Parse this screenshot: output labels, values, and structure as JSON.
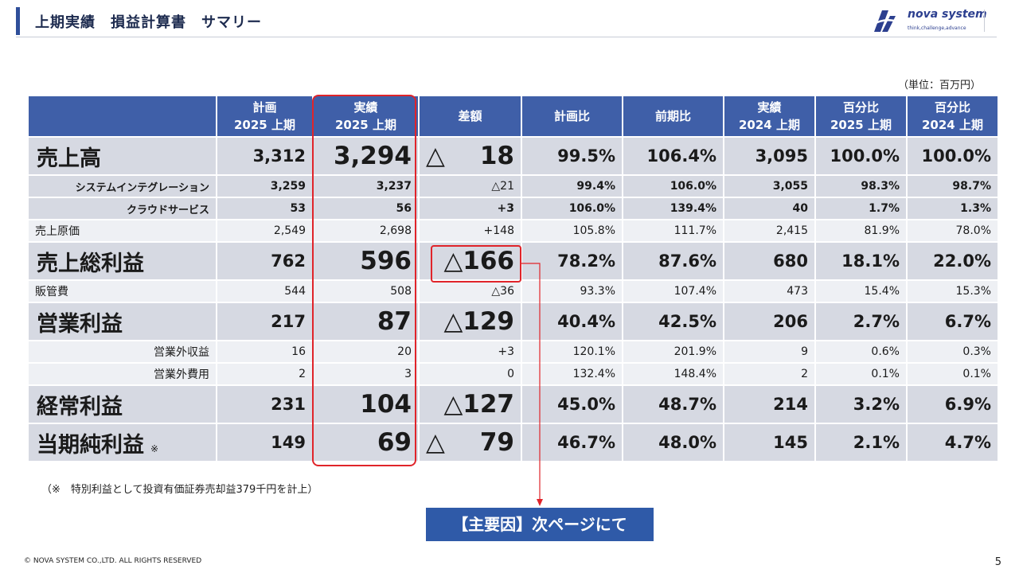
{
  "header": {
    "title": "上期実績　損益計算書　サマリー",
    "logo_name": "nova system",
    "logo_tagline": "think,challenge,advance"
  },
  "unit_label": "（単位：百万円）",
  "table": {
    "columns": [
      {
        "line1": "",
        "line2": ""
      },
      {
        "line1": "計画",
        "line2": "2025 上期"
      },
      {
        "line1": "実績",
        "line2": "2025 上期"
      },
      {
        "line1": "差額",
        "line2": ""
      },
      {
        "line1": "計画比",
        "line2": ""
      },
      {
        "line1": "前期比",
        "line2": ""
      },
      {
        "line1": "実績",
        "line2": "2024 上期"
      },
      {
        "line1": "百分比",
        "line2": "2025 上期"
      },
      {
        "line1": "百分比",
        "line2": "2024 上期"
      }
    ],
    "rows": [
      {
        "label": "売上高",
        "plan": "3,312",
        "actual": "3,294",
        "diff_mark": "△",
        "diff_val": "18",
        "plan_ratio": "99.5%",
        "yoy": "106.4%",
        "prev": "3,095",
        "pct25": "100.0%",
        "pct24": "100.0%"
      },
      {
        "label": "システムインテグレーション",
        "plan": "3,259",
        "actual": "3,237",
        "diff": "△21",
        "plan_ratio": "99.4%",
        "yoy": "106.0%",
        "prev": "3,055",
        "pct25": "98.3%",
        "pct24": "98.7%"
      },
      {
        "label": "クラウドサービス",
        "plan": "53",
        "actual": "56",
        "diff": "+3",
        "plan_ratio": "106.0%",
        "yoy": "139.4%",
        "prev": "40",
        "pct25": "1.7%",
        "pct24": "1.3%"
      },
      {
        "label": "売上原価",
        "plan": "2,549",
        "actual": "2,698",
        "diff": "+148",
        "plan_ratio": "105.8%",
        "yoy": "111.7%",
        "prev": "2,415",
        "pct25": "81.9%",
        "pct24": "78.0%"
      },
      {
        "label": "売上総利益",
        "plan": "762",
        "actual": "596",
        "diff": "△166",
        "plan_ratio": "78.2%",
        "yoy": "87.6%",
        "prev": "680",
        "pct25": "18.1%",
        "pct24": "22.0%"
      },
      {
        "label": "販管費",
        "plan": "544",
        "actual": "508",
        "diff": "△36",
        "plan_ratio": "93.3%",
        "yoy": "107.4%",
        "prev": "473",
        "pct25": "15.4%",
        "pct24": "15.3%"
      },
      {
        "label": "営業利益",
        "plan": "217",
        "actual": "87",
        "diff": "△129",
        "plan_ratio": "40.4%",
        "yoy": "42.5%",
        "prev": "206",
        "pct25": "2.7%",
        "pct24": "6.7%"
      },
      {
        "label": "営業外収益",
        "plan": "16",
        "actual": "20",
        "diff": "+3",
        "plan_ratio": "120.1%",
        "yoy": "201.9%",
        "prev": "9",
        "pct25": "0.6%",
        "pct24": "0.3%"
      },
      {
        "label": "営業外費用",
        "plan": "2",
        "actual": "3",
        "diff": "0",
        "plan_ratio": "132.4%",
        "yoy": "148.4%",
        "prev": "2",
        "pct25": "0.1%",
        "pct24": "0.1%"
      },
      {
        "label": "経常利益",
        "plan": "231",
        "actual": "104",
        "diff": "△127",
        "plan_ratio": "45.0%",
        "yoy": "48.7%",
        "prev": "214",
        "pct25": "3.2%",
        "pct24": "6.9%"
      },
      {
        "label": "当期純利益",
        "note": "※",
        "plan": "149",
        "actual": "69",
        "diff_mark": "△",
        "diff_val": "79",
        "plan_ratio": "46.7%",
        "yoy": "48.0%",
        "prev": "145",
        "pct25": "2.1%",
        "pct24": "4.7%"
      }
    ]
  },
  "footnote": "（※　特別利益として投資有価証券売却益379千円を計上）",
  "cta": "【主要因】次ページにて",
  "copyright": "© NOVA SYSTEM CO.,LTD. ALL RIGHTS RESERVED",
  "page_number": "5",
  "colors": {
    "header_blue": "#3f5fa8",
    "highlight_red": "#e0242a",
    "row_dark": "#d6d9e2",
    "row_light": "#eef0f4"
  }
}
